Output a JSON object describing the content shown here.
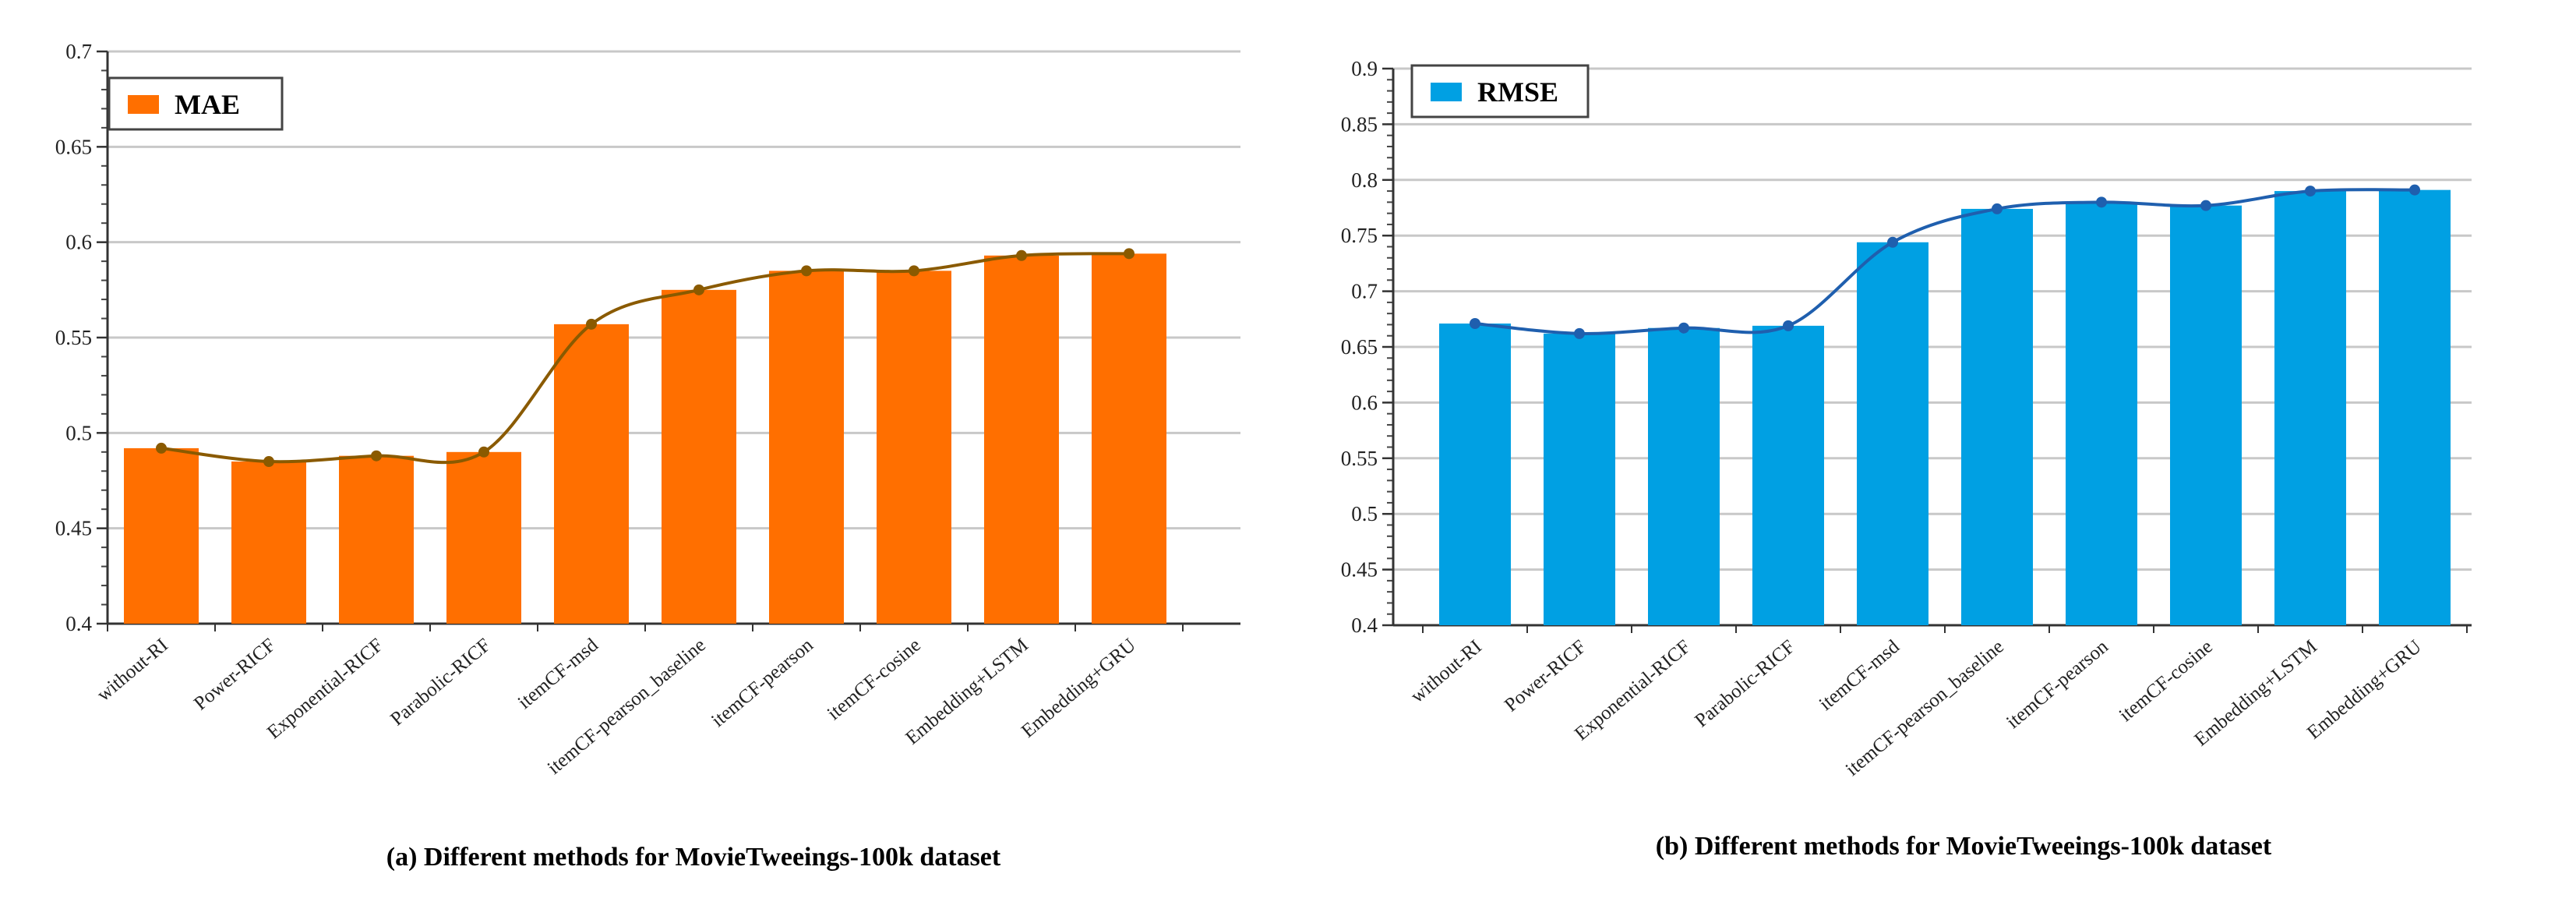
{
  "chart_data": [
    {
      "type": "bar",
      "title": "(a) Different methods for MovieTweeings-100k dataset",
      "legend": {
        "label": "MAE",
        "position": "top-left"
      },
      "categories": [
        "without-RI",
        "Power-RICF",
        "Exponential-RICF",
        "Parabolic-RICF",
        "itemCF-msd",
        "itemCF-pearson_baseline",
        "itemCF-pearson",
        "itemCF-cosine",
        "Embedding+LSTM",
        "Embedding+GRU"
      ],
      "series": [
        {
          "name": "MAE",
          "values": [
            0.492,
            0.485,
            0.488,
            0.49,
            0.557,
            0.575,
            0.585,
            0.585,
            0.593,
            0.594
          ]
        }
      ],
      "ylim": [
        0.4,
        0.7
      ],
      "yticks": [
        0.4,
        0.45,
        0.5,
        0.55,
        0.6,
        0.65,
        0.7
      ],
      "ytick_labels": [
        "0.4",
        "0.45",
        "0.5",
        "0.55",
        "0.6",
        "0.65",
        "0.7"
      ],
      "grid": true,
      "bar_color": "#ff6f00",
      "line_color": "#8a5a00",
      "xlabel": "",
      "ylabel": ""
    },
    {
      "type": "bar",
      "title": "(b) Different methods for MovieTweeings-100k dataset",
      "legend": {
        "label": "RMSE",
        "position": "top-left"
      },
      "categories": [
        "without-RI",
        "Power-RICF",
        "Exponential-RICF",
        "Parabolic-RICF",
        "itemCF-msd",
        "itemCF-pearson_baseline",
        "itemCF-pearson",
        "itemCF-cosine",
        "Embedding+LSTM",
        "Embedding+GRU"
      ],
      "series": [
        {
          "name": "RMSE",
          "values": [
            0.671,
            0.662,
            0.667,
            0.669,
            0.744,
            0.774,
            0.78,
            0.777,
            0.79,
            0.791
          ]
        }
      ],
      "ylim": [
        0.4,
        0.9
      ],
      "yticks": [
        0.4,
        0.45,
        0.5,
        0.55,
        0.6,
        0.65,
        0.7,
        0.75,
        0.8,
        0.85,
        0.9
      ],
      "ytick_labels": [
        "0.4",
        "0.45",
        "0.5",
        "0.55",
        "0.6",
        "0.65",
        "0.7",
        "0.75",
        "0.8",
        "0.85",
        "0.9"
      ],
      "grid": true,
      "bar_color": "#00a0e3",
      "line_color": "#1f5fae",
      "xlabel": "",
      "ylabel": ""
    }
  ]
}
